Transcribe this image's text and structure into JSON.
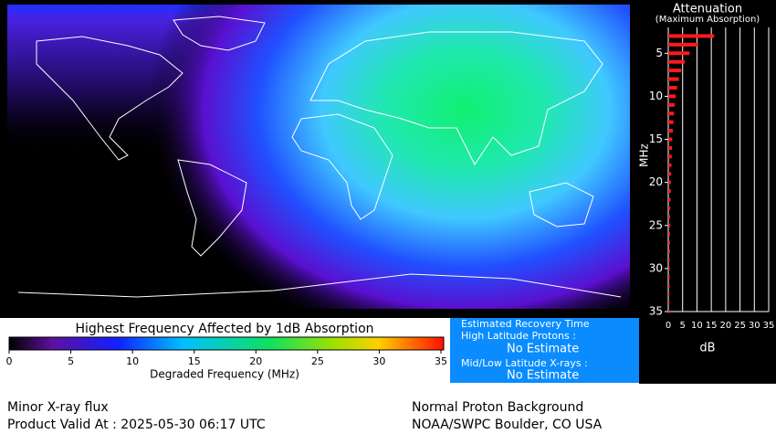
{
  "chart_data": {
    "type": "bar",
    "orientation": "horizontal",
    "title": "Attenuation",
    "subtitle": "(Maximum Absorption)",
    "y_label": "MHz",
    "x_label": "dB",
    "color": "#ff1a1a",
    "frequencies": [
      3,
      4,
      5,
      6,
      7,
      8,
      9,
      10,
      11,
      12,
      13,
      14,
      15,
      16,
      17,
      18,
      19,
      20,
      21,
      22,
      23,
      24,
      25,
      26,
      27,
      28,
      29,
      30,
      31,
      32,
      33,
      34,
      35
    ],
    "values": [
      16.0,
      10.4,
      7.4,
      5.7,
      4.5,
      3.7,
      3.1,
      2.6,
      2.2,
      2.0,
      1.8,
      1.6,
      1.4,
      1.3,
      1.2,
      1.1,
      1.0,
      0.9,
      0.9,
      0.8,
      0.7,
      0.7,
      0.7,
      0.6,
      0.6,
      0.6,
      0.5,
      0.5,
      0.5,
      0.5,
      0.4,
      0.4,
      0.4
    ],
    "ylim": [
      2,
      35
    ],
    "yticks": [
      5,
      10,
      15,
      20,
      25,
      30,
      35
    ],
    "xlim": [
      0,
      35
    ],
    "xticks": [
      0,
      5,
      10,
      15,
      20,
      25,
      30,
      35
    ],
    "grid": true
  },
  "colorbar": {
    "title": "Highest Frequency Affected by 1dB Absorption",
    "x_label": "Degraded Frequency (MHz)",
    "xlim": [
      0,
      35
    ],
    "xticks": [
      0,
      5,
      10,
      15,
      20,
      25,
      30,
      35
    ]
  },
  "recovery": {
    "title": "Estimated Recovery Time",
    "high_label": "High Latitude Protons :",
    "high_value": "No Estimate",
    "low_label": "Mid/Low Latitude X-rays :",
    "low_value": "No Estimate"
  },
  "footer": {
    "xray": "Minor X-ray flux",
    "valid": "Product Valid At : 2025-05-30 06:17 UTC",
    "proton": "Normal Proton Background",
    "source": "NOAA/SWPC Boulder, CO USA"
  }
}
